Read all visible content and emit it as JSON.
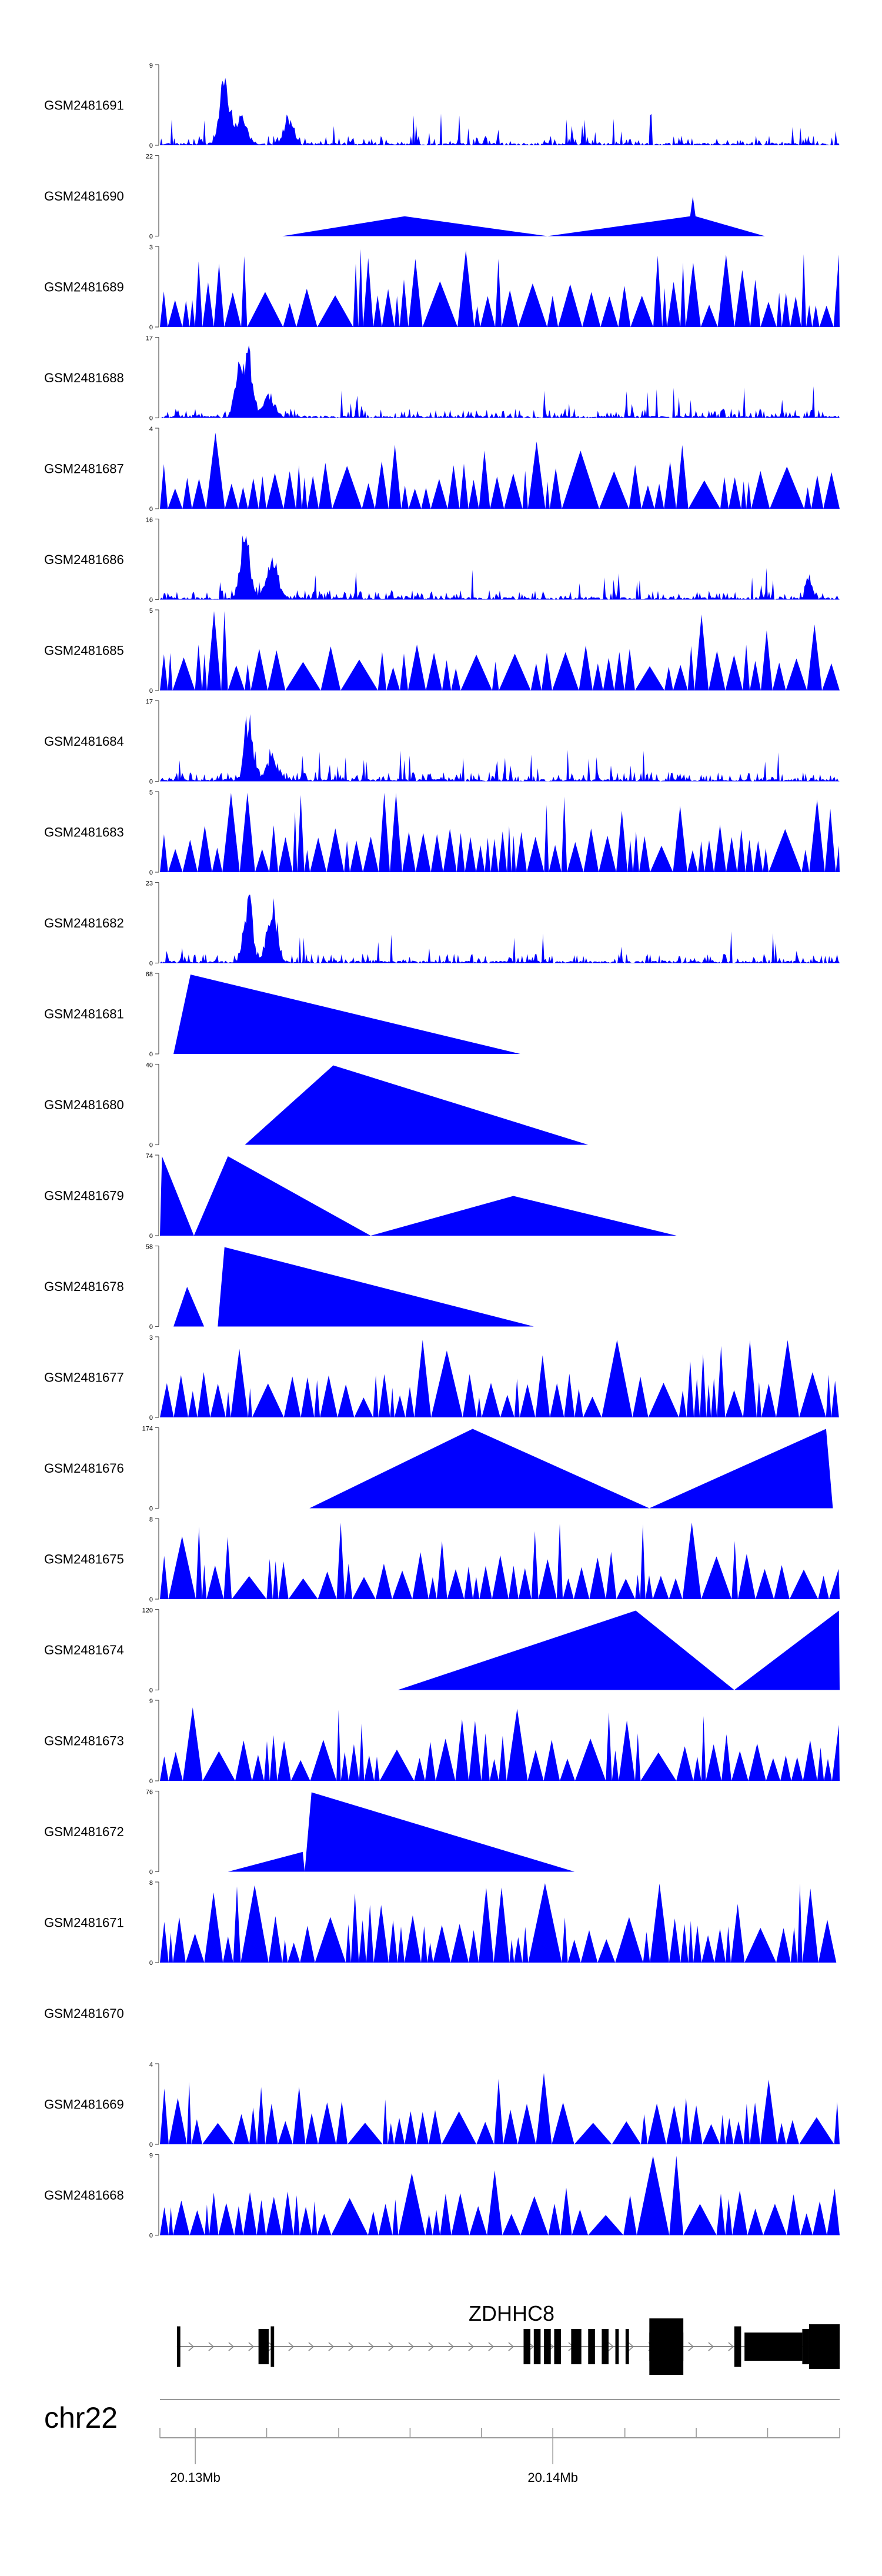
{
  "chart_data": {
    "type": "area",
    "title": "",
    "fill_color": "#0000ff",
    "tracks": [
      {
        "name": "GSM2481691",
        "ymax": 9,
        "ymin": 0,
        "kind": "dense",
        "seed": 11,
        "peaks": [
          [
            0.12,
            0.4,
            0.012
          ],
          [
            0.095,
            0.9,
            0.01
          ],
          [
            0.19,
            0.35,
            0.01
          ]
        ]
      },
      {
        "name": "GSM2481690",
        "ymax": 22,
        "ymin": 0,
        "kind": "points",
        "x": [
          0.18,
          0.36,
          0.57,
          0.78,
          0.784,
          0.788,
          0.89
        ],
        "y": [
          0,
          5.5,
          0,
          5.5,
          11,
          5.5,
          0
        ]
      },
      {
        "name": "GSM2481689",
        "ymax": 3,
        "ymin": 0,
        "kind": "sparse",
        "seed": 23,
        "peaks": []
      },
      {
        "name": "GSM2481688",
        "ymax": 17,
        "ymin": 0,
        "kind": "dense",
        "seed": 31,
        "peaks": [
          [
            0.13,
            1.0,
            0.008
          ],
          [
            0.115,
            0.7,
            0.008
          ],
          [
            0.16,
            0.35,
            0.012
          ]
        ]
      },
      {
        "name": "GSM2481687",
        "ymax": 4,
        "ymin": 0,
        "kind": "sparse",
        "seed": 41,
        "peaks": []
      },
      {
        "name": "GSM2481686",
        "ymax": 16,
        "ymin": 0,
        "kind": "dense",
        "seed": 53,
        "peaks": [
          [
            0.125,
            0.95,
            0.01
          ],
          [
            0.165,
            0.6,
            0.012
          ],
          [
            0.955,
            0.35,
            0.006
          ]
        ]
      },
      {
        "name": "GSM2481685",
        "ymax": 5,
        "ymin": 0,
        "kind": "sparse",
        "seed": 61,
        "peaks": [
          [
            0.08,
            1.0,
            0.008
          ]
        ]
      },
      {
        "name": "GSM2481684",
        "ymax": 17,
        "ymin": 0,
        "kind": "dense",
        "seed": 71,
        "peaks": [
          [
            0.13,
            1.0,
            0.008
          ],
          [
            0.165,
            0.35,
            0.012
          ]
        ]
      },
      {
        "name": "GSM2481683",
        "ymax": 5,
        "ymin": 0,
        "kind": "sparse",
        "seed": 83,
        "peaks": [
          [
            0.12,
            1.0,
            0.006
          ],
          [
            0.34,
            1.0,
            0.006
          ]
        ]
      },
      {
        "name": "GSM2481682",
        "ymax": 23,
        "ymin": 0,
        "kind": "dense",
        "seed": 97,
        "peaks": [
          [
            0.13,
            0.95,
            0.009
          ],
          [
            0.165,
            0.8,
            0.01
          ]
        ]
      },
      {
        "name": "GSM2481681",
        "ymax": 68,
        "ymin": 0,
        "kind": "points",
        "x": [
          0.02,
          0.045,
          0.53
        ],
        "y": [
          0,
          68,
          0
        ]
      },
      {
        "name": "GSM2481680",
        "ymax": 40,
        "ymin": 0,
        "kind": "points",
        "x": [
          0.125,
          0.255,
          0.63
        ],
        "y": [
          0,
          40,
          0
        ]
      },
      {
        "name": "GSM2481679",
        "ymax": 74,
        "ymin": 0,
        "kind": "points",
        "x": [
          0.0,
          0.003,
          0.05,
          0.1,
          0.31,
          0.52,
          0.76
        ],
        "y": [
          0,
          74,
          0,
          74,
          0,
          37,
          0
        ]
      },
      {
        "name": "GSM2481678",
        "ymax": 58,
        "ymin": 0,
        "kind": "points",
        "x": [
          0.02,
          0.04,
          0.065,
          0.085,
          0.095,
          0.55
        ],
        "y": [
          0,
          29,
          0,
          0,
          58,
          0
        ]
      },
      {
        "name": "GSM2481677",
        "ymax": 3,
        "ymin": 0,
        "kind": "sparse",
        "seed": 131,
        "peaks": []
      },
      {
        "name": "GSM2481676",
        "ymax": 174,
        "ymin": 0,
        "kind": "points",
        "x": [
          0.22,
          0.46,
          0.72,
          0.98,
          0.99
        ],
        "y": [
          0,
          174,
          0,
          174,
          0
        ]
      },
      {
        "name": "GSM2481675",
        "ymax": 8,
        "ymin": 0,
        "kind": "sparse",
        "seed": 149,
        "peaks": []
      },
      {
        "name": "GSM2481674",
        "ymax": 120,
        "ymin": 0,
        "kind": "points",
        "x": [
          0.35,
          0.7,
          0.845,
          0.999,
          1.0
        ],
        "y": [
          0,
          120,
          0,
          120,
          0
        ]
      },
      {
        "name": "GSM2481673",
        "ymax": 9,
        "ymin": 0,
        "kind": "sparse",
        "seed": 167,
        "peaks": []
      },
      {
        "name": "GSM2481672",
        "ymax": 76,
        "ymin": 0,
        "kind": "points",
        "x": [
          0.1,
          0.21,
          0.213,
          0.223,
          0.61
        ],
        "y": [
          0,
          19,
          0,
          76,
          0
        ]
      },
      {
        "name": "GSM2481671",
        "ymax": 8,
        "ymin": 0,
        "kind": "sparse",
        "seed": 181,
        "peaks": [
          [
            0.575,
            1.0,
            0.004
          ]
        ]
      },
      {
        "name": "GSM2481670",
        "ymax": null,
        "ymin": null,
        "kind": "empty",
        "seed": 0,
        "peaks": []
      },
      {
        "name": "GSM2481669",
        "ymax": 4,
        "ymin": 0,
        "kind": "sparse",
        "seed": 199,
        "peaks": []
      },
      {
        "name": "GSM2481668",
        "ymax": 9,
        "ymin": 0,
        "kind": "sparse",
        "seed": 211,
        "peaks": [
          [
            0.735,
            1.0,
            0.004
          ]
        ]
      }
    ],
    "gene": {
      "name": "ZDHHC8",
      "strand": "+",
      "exons": [
        [
          0.025,
          0.03
        ],
        [
          0.145,
          0.16
        ],
        [
          0.163,
          0.168
        ],
        [
          0.535,
          0.545
        ],
        [
          0.55,
          0.56
        ],
        [
          0.565,
          0.575
        ],
        [
          0.58,
          0.59
        ],
        [
          0.605,
          0.62
        ],
        [
          0.63,
          0.64
        ],
        [
          0.65,
          0.66
        ],
        [
          0.67,
          0.675
        ],
        [
          0.685,
          0.69
        ],
        [
          0.72,
          0.77
        ],
        [
          0.845,
          0.855
        ],
        [
          0.86,
          0.945
        ],
        [
          0.945,
          0.955
        ],
        [
          0.955,
          1.0
        ]
      ],
      "thin": [
        [
          0.025,
          0.03
        ],
        [
          0.163,
          0.168
        ],
        [
          0.845,
          0.855
        ]
      ]
    },
    "axis": {
      "chromosome": "chr22",
      "tick_labels": [
        "20.13Mb",
        "20.14Mb"
      ],
      "tick_positions": [
        0.052,
        0.578
      ],
      "minor_ticks": [
        0.0,
        0.052,
        0.157,
        0.263,
        0.368,
        0.473,
        0.578,
        0.684,
        0.789,
        0.894,
        1.0
      ]
    }
  }
}
